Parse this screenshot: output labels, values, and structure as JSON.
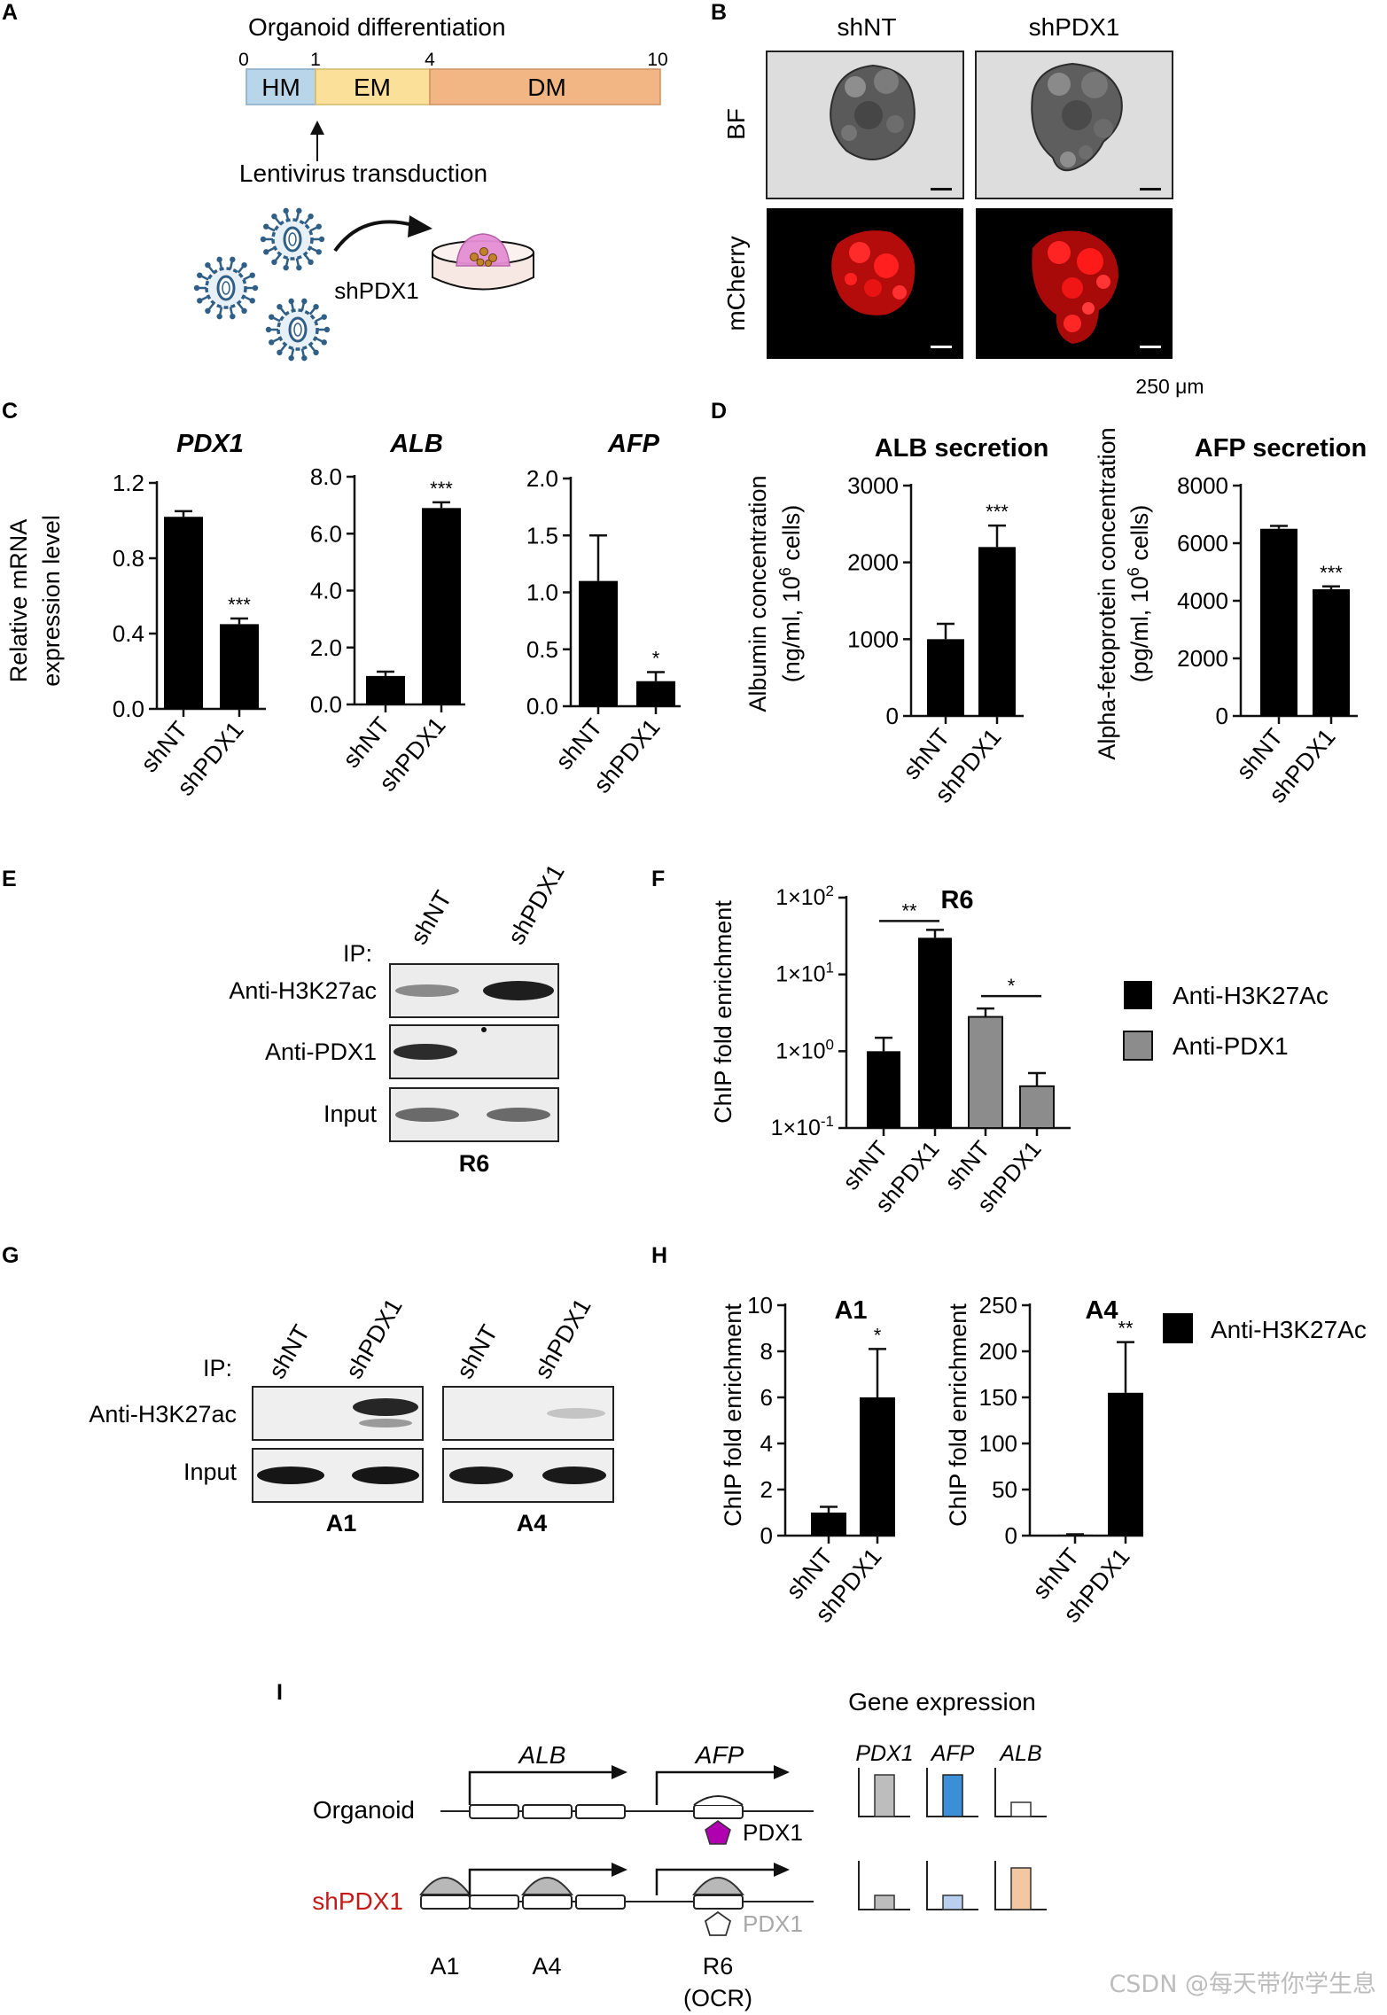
{
  "panel_letters": {
    "A": "A",
    "B": "B",
    "C": "C",
    "D": "D",
    "E": "E",
    "F": "F",
    "G": "G",
    "H": "H",
    "I": "I"
  },
  "colors": {
    "hm": "#b9d5ea",
    "em": "#fbe09a",
    "dm": "#f2b684",
    "virus": "#2f5f86",
    "dish": "#f7e8e3",
    "organoid": "#e58fd5",
    "gray_bar": "#8c8c8c",
    "pdx1": "#b000b0",
    "afp_blue": "#3a8fd6",
    "alb_orange": "#f2c7a2",
    "sh_red": "#c41a1a"
  },
  "panel_a": {
    "title": "Organoid differentiation",
    "ticks": [
      "0",
      "1",
      "4",
      "10"
    ],
    "stages": [
      "HM",
      "EM",
      "DM"
    ],
    "arrow_label": "Lentivirus transduction",
    "construct": "shPDX1",
    "icons": [
      "virus-icon",
      "curved-arrow-icon",
      "culture-dish-icon"
    ]
  },
  "panel_b": {
    "columns": [
      "shNT",
      "shPDX1"
    ],
    "rows": [
      "BF",
      "mCherry"
    ],
    "scale_bar": "250 μm"
  },
  "panel_c": {
    "ylabel_1": "Relative mRNA",
    "ylabel_2": "expression level",
    "charts": [
      {
        "title": "PDX1",
        "yticks": [
          "0.0",
          "0.4",
          "0.8",
          "1.2"
        ],
        "ymax": 1.2,
        "stars": [
          "",
          "***"
        ]
      },
      {
        "title": "ALB",
        "yticks": [
          "0.0",
          "2.0",
          "4.0",
          "6.0",
          "8.0"
        ],
        "ymax": 8.0,
        "stars": [
          "",
          "***"
        ]
      },
      {
        "title": "AFP",
        "yticks": [
          "0.0",
          "0.5",
          "1.0",
          "1.5",
          "2.0"
        ],
        "ymax": 2.0,
        "stars": [
          "",
          "*"
        ]
      }
    ]
  },
  "panel_d": {
    "charts": [
      {
        "title": "ALB secretion",
        "ylabel_1": "Albumin concentration",
        "ylabel_2": "(ng/ml, 10",
        "ylabel_sup": "6",
        "ylabel_3": " cells)",
        "yticks": [
          "0",
          "1000",
          "2000",
          "3000"
        ],
        "ymax": 3000,
        "stars": [
          "",
          "***"
        ]
      },
      {
        "title": "AFP secretion",
        "ylabel_1": "Alpha-fetoprotein concentration",
        "ylabel_2": "(pg/ml, 10",
        "ylabel_sup": "6",
        "ylabel_3": " cells)",
        "yticks": [
          "0",
          "2000",
          "4000",
          "6000",
          "8000"
        ],
        "ymax": 8000,
        "stars": [
          "",
          "***"
        ]
      }
    ]
  },
  "panel_e": {
    "ip_label": "IP:",
    "lanes": [
      "shNT",
      "shPDX1"
    ],
    "rows": [
      "Anti-H3K27ac",
      "Anti-PDX1",
      "Input"
    ],
    "region": "R6"
  },
  "panel_f": {
    "ylabel": "ChIP fold enrichment",
    "yticks": [
      {
        "base": "1×10",
        "exp": "2"
      },
      {
        "base": "1×10",
        "exp": "1"
      },
      {
        "base": "1×10",
        "exp": "0"
      },
      {
        "base": "1×10",
        "exp": "-1"
      }
    ],
    "region": "R6",
    "sig1": "**",
    "sig2": "*",
    "legend": [
      "Anti-H3K27Ac",
      "Anti-PDX1"
    ]
  },
  "panel_g": {
    "ip_label": "IP:",
    "lanes": [
      "shNT",
      "shPDX1"
    ],
    "rows": [
      "Anti-H3K27ac",
      "Input"
    ],
    "regions": [
      "A1",
      "A4"
    ]
  },
  "panel_h": {
    "ylabel": "ChIP fold enrichment",
    "charts": [
      {
        "title": "A1",
        "yticks": [
          "0",
          "2",
          "4",
          "6",
          "8",
          "10"
        ],
        "ymax": 10,
        "stars": [
          "",
          "*"
        ]
      },
      {
        "title": "A4",
        "yticks": [
          "0",
          "50",
          "100",
          "150",
          "200",
          "250"
        ],
        "ymax": 250,
        "stars": [
          "",
          "**"
        ]
      }
    ],
    "legend": "Anti-H3K27Ac"
  },
  "panel_i": {
    "gene_expression_title": "Gene expression",
    "genes": [
      "ALB",
      "AFP"
    ],
    "expr_genes": [
      "PDX1",
      "AFP",
      "ALB"
    ],
    "rows": [
      "Organoid",
      "shPDX1"
    ],
    "pdx1_label": "PDX1",
    "sites": [
      "A1",
      "A4",
      "R6"
    ],
    "ocr": "(OCR)"
  },
  "watermark": "CSDN @每天带你学生息",
  "chart_data": [
    {
      "type": "bar",
      "title": "PDX1",
      "categories": [
        "shNT",
        "shPDX1"
      ],
      "values": [
        1.02,
        0.45
      ],
      "errors": [
        0.03,
        0.03
      ],
      "ylabel": "Relative mRNA expression level",
      "ylim": [
        0,
        1.2
      ]
    },
    {
      "type": "bar",
      "title": "ALB",
      "categories": [
        "shNT",
        "shPDX1"
      ],
      "values": [
        1.0,
        6.9
      ],
      "errors": [
        0.15,
        0.2
      ],
      "ylabel": "Relative mRNA expression level",
      "ylim": [
        0,
        8
      ]
    },
    {
      "type": "bar",
      "title": "AFP",
      "categories": [
        "shNT",
        "shPDX1"
      ],
      "values": [
        1.1,
        0.22
      ],
      "errors": [
        0.4,
        0.08
      ],
      "ylabel": "Relative mRNA expression level",
      "ylim": [
        0,
        2
      ]
    },
    {
      "type": "bar",
      "title": "ALB secretion",
      "categories": [
        "shNT",
        "shPDX1"
      ],
      "values": [
        1000,
        2200
      ],
      "errors": [
        200,
        280
      ],
      "ylabel": "Albumin concentration (ng/ml, 10^6 cells)",
      "ylim": [
        0,
        3000
      ]
    },
    {
      "type": "bar",
      "title": "AFP secretion",
      "categories": [
        "shNT",
        "shPDX1"
      ],
      "values": [
        6500,
        4400
      ],
      "errors": [
        100,
        100
      ],
      "ylabel": "Alpha-fetoprotein concentration (pg/ml, 10^6 cells)",
      "ylim": [
        0,
        8000
      ]
    },
    {
      "type": "bar",
      "title": "R6",
      "categories": [
        "shNT",
        "shPDX1",
        "shNT",
        "shPDX1"
      ],
      "series": [
        {
          "name": "Anti-H3K27Ac",
          "values": [
            1.0,
            30,
            null,
            null
          ]
        },
        {
          "name": "Anti-PDX1",
          "values": [
            null,
            null,
            2.8,
            0.35
          ]
        }
      ],
      "errors": [
        0.5,
        8,
        0.8,
        0.17
      ],
      "ylabel": "ChIP fold enrichment",
      "yscale": "log",
      "ylim": [
        0.1,
        100
      ]
    },
    {
      "type": "bar",
      "title": "A1",
      "categories": [
        "shNT",
        "shPDX1"
      ],
      "values": [
        1.0,
        6.0
      ],
      "errors": [
        0.25,
        2.1
      ],
      "ylabel": "ChIP fold enrichment",
      "ylim": [
        0,
        10
      ]
    },
    {
      "type": "bar",
      "title": "A4",
      "categories": [
        "shNT",
        "shPDX1"
      ],
      "values": [
        1,
        155
      ],
      "errors": [
        0.5,
        55
      ],
      "ylabel": "ChIP fold enrichment",
      "ylim": [
        0,
        250
      ]
    }
  ]
}
